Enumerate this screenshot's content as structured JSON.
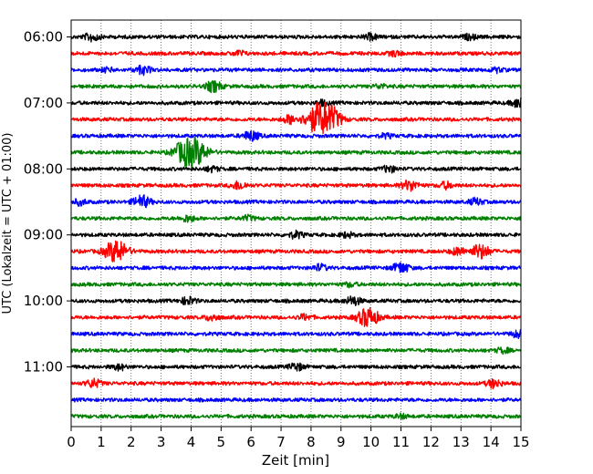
{
  "chart_data": {
    "type": "line",
    "title": "",
    "xlabel": "Zeit  [min]",
    "ylabel": "UTC (Lokalzeit = UTC + 01:00)",
    "xlim": [
      0,
      15
    ],
    "x_ticks": [
      0,
      1,
      2,
      3,
      4,
      5,
      6,
      7,
      8,
      9,
      10,
      11,
      12,
      13,
      14,
      15
    ],
    "y_ticks": [
      "06:00",
      "07:00",
      "08:00",
      "09:00",
      "10:00",
      "11:00"
    ],
    "trace_interval_min": 15,
    "start_time": "06:00",
    "grid": {
      "x": true,
      "y": false,
      "style": "dotted"
    },
    "colors": [
      "#000000",
      "#ff0000",
      "#0000ff",
      "#008000"
    ],
    "traces": [
      {
        "start": "06:00",
        "color": "#000000",
        "events": [
          {
            "t": 0.7,
            "amp": 1.0
          },
          {
            "t": 10.0,
            "amp": 0.7
          },
          {
            "t": 13.3,
            "amp": 0.6
          }
        ]
      },
      {
        "start": "06:15",
        "color": "#ff0000",
        "events": [
          {
            "t": 5.6,
            "amp": 0.6
          },
          {
            "t": 10.8,
            "amp": 0.6
          }
        ]
      },
      {
        "start": "06:30",
        "color": "#0000ff",
        "events": [
          {
            "t": 1.2,
            "amp": 0.5
          },
          {
            "t": 2.4,
            "amp": 1.0
          },
          {
            "t": 14.2,
            "amp": 0.5
          }
        ]
      },
      {
        "start": "06:45",
        "color": "#008000",
        "events": [
          {
            "t": 4.75,
            "amp": 1.3
          },
          {
            "t": 10.3,
            "amp": 0.5
          }
        ]
      },
      {
        "start": "07:00",
        "color": "#000000",
        "events": [
          {
            "t": 8.4,
            "amp": 0.6
          },
          {
            "t": 14.95,
            "amp": 1.2
          }
        ]
      },
      {
        "start": "07:15",
        "color": "#ff0000",
        "events": [
          {
            "t": 7.3,
            "amp": 1.0
          },
          {
            "t": 8.3,
            "amp": 4.0
          },
          {
            "t": 8.75,
            "amp": 1.6
          }
        ]
      },
      {
        "start": "07:30",
        "color": "#0000ff",
        "events": [
          {
            "t": 6.0,
            "amp": 1.2
          },
          {
            "t": 10.5,
            "amp": 0.5
          }
        ]
      },
      {
        "start": "07:45",
        "color": "#008000",
        "events": [
          {
            "t": 3.6,
            "amp": 1.0
          },
          {
            "t": 4.05,
            "amp": 3.8
          }
        ]
      },
      {
        "start": "08:00",
        "color": "#000000",
        "events": [
          {
            "t": 4.7,
            "amp": 0.6
          },
          {
            "t": 10.6,
            "amp": 0.8
          }
        ]
      },
      {
        "start": "08:15",
        "color": "#ff0000",
        "events": [
          {
            "t": 5.6,
            "amp": 1.0
          },
          {
            "t": 11.3,
            "amp": 1.3
          },
          {
            "t": 12.5,
            "amp": 0.8
          }
        ]
      },
      {
        "start": "08:30",
        "color": "#0000ff",
        "events": [
          {
            "t": 0.3,
            "amp": 0.7
          },
          {
            "t": 2.35,
            "amp": 1.5
          },
          {
            "t": 13.5,
            "amp": 0.8
          }
        ]
      },
      {
        "start": "08:45",
        "color": "#008000",
        "events": [
          {
            "t": 3.9,
            "amp": 0.8
          },
          {
            "t": 5.9,
            "amp": 0.6
          }
        ]
      },
      {
        "start": "09:00",
        "color": "#000000",
        "events": [
          {
            "t": 7.5,
            "amp": 0.8
          },
          {
            "t": 9.2,
            "amp": 0.6
          }
        ]
      },
      {
        "start": "09:15",
        "color": "#ff0000",
        "events": [
          {
            "t": 1.5,
            "amp": 2.8
          },
          {
            "t": 12.9,
            "amp": 0.9
          },
          {
            "t": 13.65,
            "amp": 1.8
          }
        ]
      },
      {
        "start": "09:30",
        "color": "#0000ff",
        "events": [
          {
            "t": 8.3,
            "amp": 0.8
          },
          {
            "t": 11.0,
            "amp": 1.3
          }
        ]
      },
      {
        "start": "09:45",
        "color": "#008000",
        "events": [
          {
            "t": 9.3,
            "amp": 0.5
          }
        ]
      },
      {
        "start": "10:00",
        "color": "#000000",
        "events": [
          {
            "t": 3.9,
            "amp": 0.9
          },
          {
            "t": 9.4,
            "amp": 1.1
          }
        ]
      },
      {
        "start": "10:15",
        "color": "#ff0000",
        "events": [
          {
            "t": 4.7,
            "amp": 0.8
          },
          {
            "t": 7.8,
            "amp": 0.7
          },
          {
            "t": 9.9,
            "amp": 2.4
          }
        ]
      },
      {
        "start": "10:30",
        "color": "#0000ff",
        "events": [
          {
            "t": 14.9,
            "amp": 0.8
          }
        ]
      },
      {
        "start": "10:45",
        "color": "#008000",
        "events": [
          {
            "t": 14.4,
            "amp": 0.6
          }
        ]
      },
      {
        "start": "11:00",
        "color": "#000000",
        "events": [
          {
            "t": 1.6,
            "amp": 0.7
          },
          {
            "t": 7.5,
            "amp": 0.9
          }
        ]
      },
      {
        "start": "11:15",
        "color": "#ff0000",
        "events": [
          {
            "t": 0.75,
            "amp": 1.0
          },
          {
            "t": 14.1,
            "amp": 1.0
          }
        ]
      },
      {
        "start": "11:30",
        "color": "#0000ff",
        "events": []
      },
      {
        "start": "11:45",
        "color": "#008000",
        "events": [
          {
            "t": 11.0,
            "amp": 0.5
          }
        ]
      }
    ]
  }
}
